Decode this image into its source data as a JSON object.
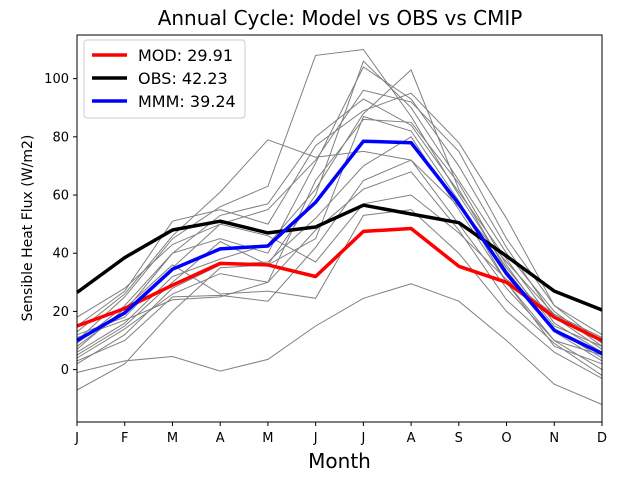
{
  "chart_data": {
    "type": "line",
    "title": "Annual Cycle: Model vs OBS vs CMIP",
    "xlabel": "Month",
    "ylabel": "Sensible Heat Flux (W/m2)",
    "categories": [
      "J",
      "F",
      "M",
      "A",
      "M",
      "J",
      "J",
      "A",
      "S",
      "O",
      "N",
      "D"
    ],
    "ylim": [
      -18,
      115
    ],
    "yticks": [
      0,
      20,
      40,
      60,
      80,
      100
    ],
    "highlight_series": [
      {
        "name": "MOD",
        "legend_label": "MOD: 29.91",
        "color": "#ff0000",
        "values": [
          15,
          21,
          29,
          36.5,
          36,
          32,
          47.5,
          48.5,
          35.5,
          30,
          18,
          10
        ]
      },
      {
        "name": "OBS",
        "legend_label": "OBS: 42.23",
        "color": "#000000",
        "values": [
          26.5,
          38.5,
          48,
          51,
          47,
          49,
          56.5,
          53.5,
          50.5,
          39,
          27,
          20.5
        ]
      },
      {
        "name": "MMM",
        "legend_label": "MMM: 39.24",
        "color": "#0000ff",
        "values": [
          10,
          19.5,
          34.5,
          41.5,
          42.5,
          57.5,
          78.5,
          78,
          57,
          33,
          13.5,
          5.5
        ]
      }
    ],
    "ensemble_color": "#808080",
    "ensemble_series": [
      [
        -7,
        2,
        20,
        35,
        36,
        45,
        87,
        82,
        58,
        30,
        8,
        2
      ],
      [
        -1,
        3,
        4.5,
        -0.5,
        3.5,
        15,
        24.5,
        29.5,
        23.5,
        10,
        -5,
        -12
      ],
      [
        3,
        10,
        25,
        25.5,
        23.5,
        42,
        65,
        72,
        50,
        28,
        10,
        5
      ],
      [
        5,
        15,
        30,
        44,
        36,
        60,
        106,
        90,
        65,
        40,
        20,
        8
      ],
      [
        8,
        20,
        40,
        45,
        40,
        71,
        104,
        93,
        70,
        42,
        18,
        7
      ],
      [
        10,
        25,
        45,
        56,
        63,
        108,
        110,
        87,
        60,
        35,
        15,
        8
      ],
      [
        12,
        18,
        35,
        50,
        55,
        72,
        96,
        92,
        75,
        45,
        22,
        12
      ],
      [
        15,
        27,
        51,
        55,
        50,
        77,
        89,
        95,
        78,
        52,
        22,
        9
      ],
      [
        6,
        16,
        32,
        38,
        43,
        62,
        88,
        103,
        62,
        34,
        14,
        4
      ],
      [
        2,
        12,
        28,
        36,
        37,
        52,
        70,
        80,
        55,
        30,
        10,
        0
      ],
      [
        4,
        14,
        26,
        33,
        30,
        65,
        86,
        85,
        64,
        36,
        13,
        3
      ],
      [
        9,
        22,
        40,
        53,
        57,
        80,
        93,
        84,
        61,
        38,
        16,
        6
      ],
      [
        13,
        26,
        46,
        61,
        79,
        73,
        75,
        72,
        56,
        37,
        19,
        11
      ],
      [
        18,
        28,
        43,
        50,
        46,
        37,
        57,
        60,
        47,
        31,
        19,
        11
      ],
      [
        7,
        21,
        36,
        26,
        27,
        24.5,
        53,
        55,
        40,
        20,
        6,
        -3
      ],
      [
        11,
        17,
        24,
        25,
        30,
        48,
        62,
        68,
        48,
        24,
        9,
        -2
      ]
    ]
  }
}
